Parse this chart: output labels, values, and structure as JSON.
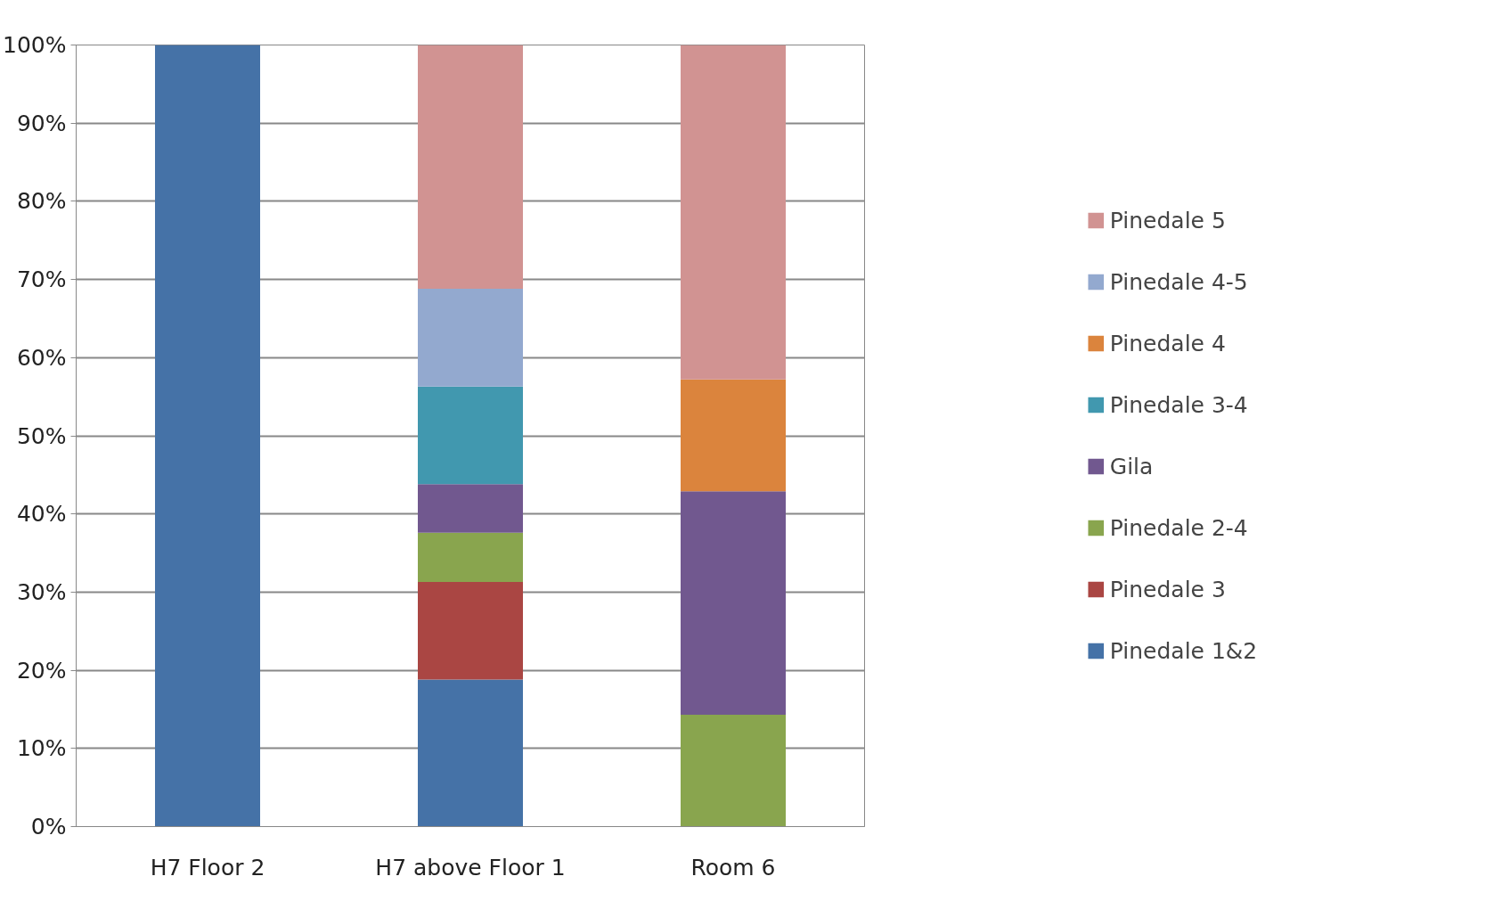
{
  "chart_data": {
    "type": "bar",
    "stacked": true,
    "categories": [
      "H7 Floor 2",
      "H7 above Floor 1",
      "Room 6"
    ],
    "series": [
      {
        "name": "Pinedale 1&2",
        "color": "#4572a7",
        "values": [
          100,
          18.8,
          0
        ]
      },
      {
        "name": "Pinedale 3",
        "color": "#aa4643",
        "values": [
          0,
          12.5,
          0
        ]
      },
      {
        "name": "Pinedale 2-4",
        "color": "#89a54e",
        "values": [
          0,
          6.3,
          14.3
        ]
      },
      {
        "name": "Gila",
        "color": "#71588f",
        "values": [
          0,
          6.2,
          28.6
        ]
      },
      {
        "name": "Pinedale 3-4",
        "color": "#4198af",
        "values": [
          0,
          12.5,
          0
        ]
      },
      {
        "name": "Pinedale 4",
        "color": "#db843d",
        "values": [
          0,
          0,
          14.3
        ]
      },
      {
        "name": "Pinedale 4-5",
        "color": "#93a9cf",
        "values": [
          0,
          12.5,
          0
        ]
      },
      {
        "name": "Pinedale 5",
        "color": "#d19392",
        "values": [
          0,
          31.2,
          42.8
        ]
      }
    ],
    "ylim": [
      0,
      100
    ],
    "yticks": [
      {
        "value": 0,
        "label": "0%"
      },
      {
        "value": 10,
        "label": "10%"
      },
      {
        "value": 20,
        "label": "20%"
      },
      {
        "value": 30,
        "label": "30%"
      },
      {
        "value": 40,
        "label": "40%"
      },
      {
        "value": 50,
        "label": "50%"
      },
      {
        "value": 60,
        "label": "60%"
      },
      {
        "value": 70,
        "label": "70%"
      },
      {
        "value": 80,
        "label": "80%"
      },
      {
        "value": 90,
        "label": "90%"
      },
      {
        "value": 100,
        "label": "100%"
      }
    ],
    "grid": "y",
    "legend": "right"
  }
}
